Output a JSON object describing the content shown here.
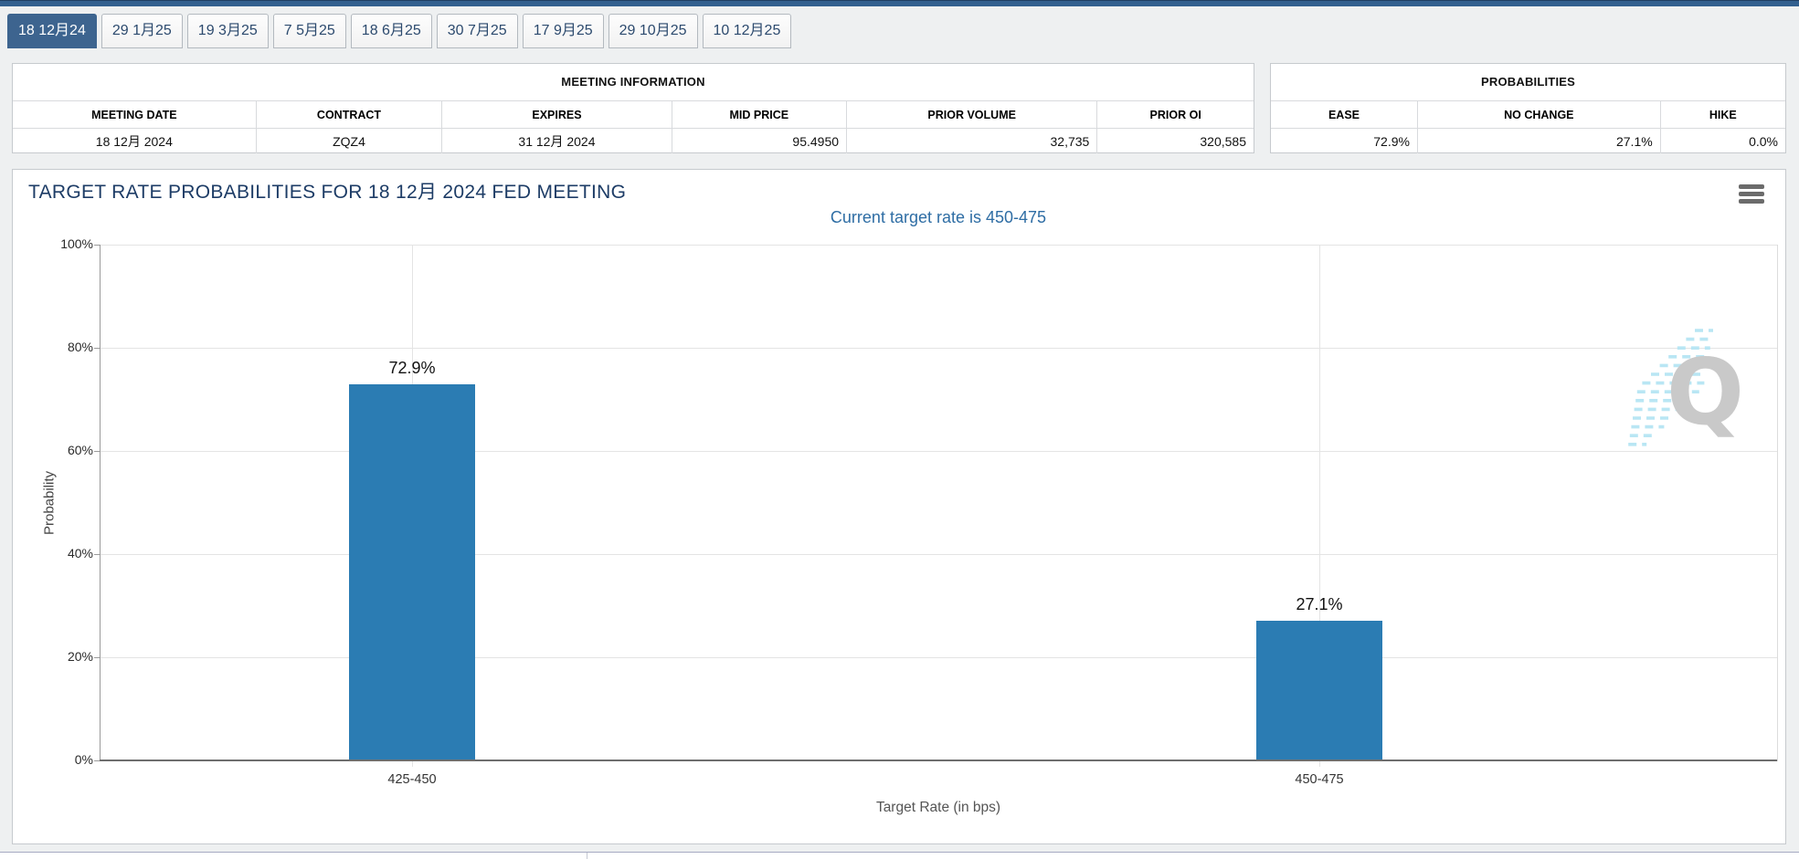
{
  "colors": {
    "bar": "#2b7cb3",
    "selected_tab": "#3d648f",
    "top_bar": "#33608f",
    "chart_title_text": "#1d3c66",
    "chart_subtitle_text": "#2e6da4"
  },
  "tabs": [
    {
      "label": "18 12月24",
      "selected": true
    },
    {
      "label": "29 1月25",
      "selected": false
    },
    {
      "label": "19 3月25",
      "selected": false
    },
    {
      "label": "7 5月25",
      "selected": false
    },
    {
      "label": "18 6月25",
      "selected": false
    },
    {
      "label": "30 7月25",
      "selected": false
    },
    {
      "label": "17 9月25",
      "selected": false
    },
    {
      "label": "29 10月25",
      "selected": false
    },
    {
      "label": "10 12月25",
      "selected": false
    }
  ],
  "meeting_info": {
    "title": "MEETING INFORMATION",
    "columns": [
      "MEETING DATE",
      "CONTRACT",
      "EXPIRES",
      "MID PRICE",
      "PRIOR VOLUME",
      "PRIOR OI"
    ],
    "values": [
      "18 12月 2024",
      "ZQZ4",
      "31 12月 2024",
      "95.4950",
      "32,735",
      "320,585"
    ]
  },
  "probabilities": {
    "title": "PROBABILITIES",
    "columns": [
      "EASE",
      "NO CHANGE",
      "HIKE"
    ],
    "values": [
      "72.9%",
      "27.1%",
      "0.0%"
    ]
  },
  "chart": {
    "watermark_letter": "Q"
  },
  "chart_data": {
    "type": "bar",
    "title": "TARGET RATE PROBABILITIES FOR 18 12月 2024 FED MEETING",
    "subtitle": "Current target rate is 450-475",
    "categories": [
      "425-450",
      "450-475"
    ],
    "values": [
      72.9,
      27.1
    ],
    "value_labels": [
      "72.9%",
      "27.1%"
    ],
    "xlabel": "Target Rate (in bps)",
    "ylabel": "Probability",
    "ylim": [
      0,
      100
    ],
    "yticks": [
      "0%",
      "20%",
      "40%",
      "60%",
      "80%",
      "100%"
    ],
    "grid": true,
    "legend": false,
    "bar_color": "#2b7cb3"
  }
}
